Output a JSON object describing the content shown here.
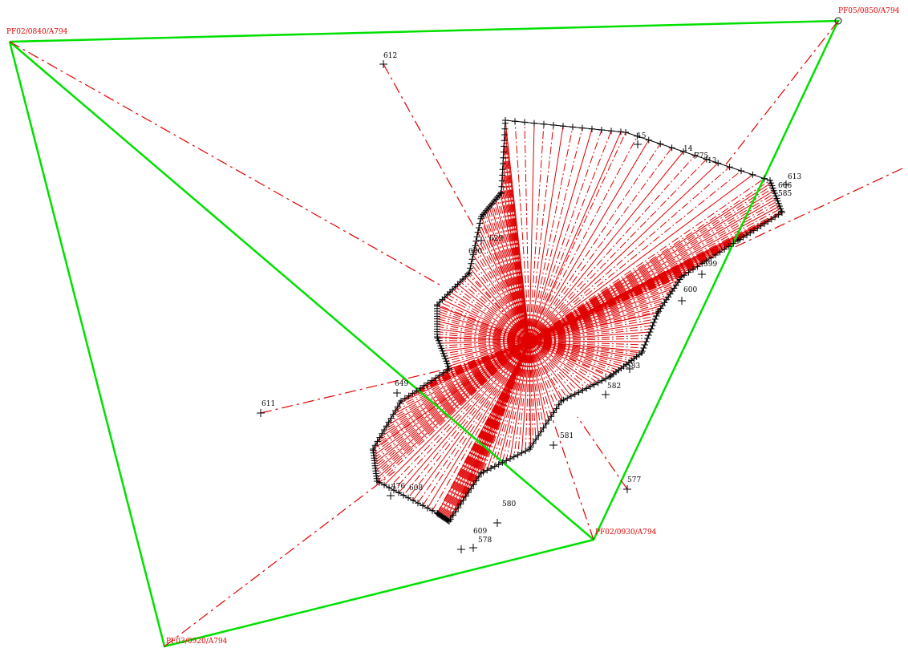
{
  "stations": [
    {
      "label": "PF02/0840/A794"
    },
    {
      "label": "PF05/0850/A794"
    },
    {
      "label": "PF02/0930/A794"
    },
    {
      "label": "PF03/0920/A794"
    }
  ],
  "points": [
    {
      "label": "612"
    },
    {
      "label": "611"
    },
    {
      "label": "577"
    },
    {
      "label": "580"
    },
    {
      "label": "581"
    },
    {
      "label": "582"
    },
    {
      "label": "583"
    },
    {
      "label": "600"
    },
    {
      "label": "599"
    },
    {
      "label": "613"
    },
    {
      "label": "606"
    },
    {
      "label": "585"
    },
    {
      "label": "629"
    },
    {
      "label": "630"
    },
    {
      "label": "649"
    },
    {
      "label": "15"
    },
    {
      "label": "14"
    },
    {
      "label": "13"
    },
    {
      "label": "775"
    },
    {
      "label": "476"
    },
    {
      "label": "608"
    },
    {
      "label": "609"
    },
    {
      "label": "578"
    }
  ]
}
